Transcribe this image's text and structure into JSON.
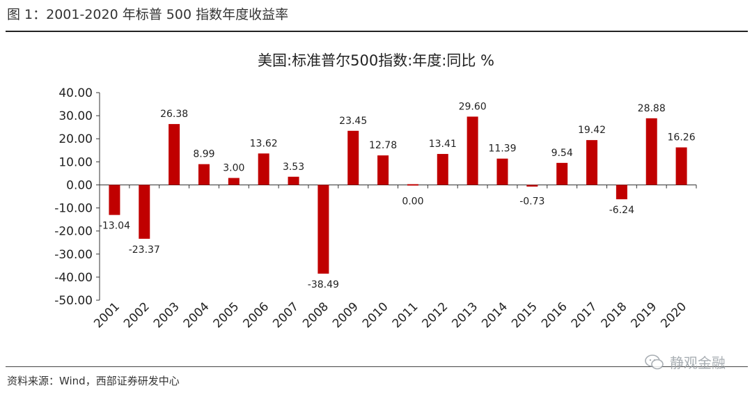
{
  "figure": {
    "caption": "图 1：2001-2020 年标普 500 指数年度收益率",
    "source": "资料来源：Wind，西部证券研发中心",
    "watermark": "静观金融"
  },
  "colors": {
    "bar": "#c00000",
    "axis": "#333333"
  },
  "chart_data": {
    "type": "bar",
    "title": "美国:标准普尔500指数:年度:同比 %",
    "categories": [
      "2001",
      "2002",
      "2003",
      "2004",
      "2005",
      "2006",
      "2007",
      "2008",
      "2009",
      "2010",
      "2011",
      "2012",
      "2013",
      "2014",
      "2015",
      "2016",
      "2017",
      "2018",
      "2019",
      "2020"
    ],
    "values": [
      -13.04,
      -23.37,
      26.38,
      8.99,
      3.0,
      13.62,
      3.53,
      -38.49,
      23.45,
      12.78,
      0.0,
      13.41,
      29.6,
      11.39,
      -0.73,
      9.54,
      19.42,
      -6.24,
      28.88,
      16.26
    ],
    "value_labels": [
      "-13.04",
      "-23.37",
      "26.38",
      "8.99",
      "3.00",
      "13.62",
      "3.53",
      "-38.49",
      "23.45",
      "12.78",
      "0.00",
      "13.41",
      "29.60",
      "11.39",
      "-0.73",
      "9.54",
      "19.42",
      "-6.24",
      "28.88",
      "16.26"
    ],
    "ylim": [
      -50,
      40
    ],
    "yticks": [
      40,
      30,
      20,
      10,
      0,
      -10,
      -20,
      -30,
      -40,
      -50
    ],
    "ytick_labels": [
      "40.00",
      "30.00",
      "20.00",
      "10.00",
      "0.00",
      "-10.00",
      "-20.00",
      "-30.00",
      "-40.00",
      "-50.00"
    ],
    "xlabel": "",
    "ylabel": "",
    "legend": "none",
    "grid": false
  }
}
